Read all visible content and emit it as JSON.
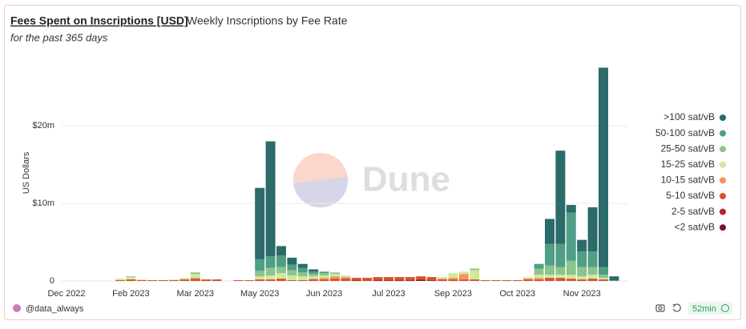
{
  "chart_data": {
    "type": "stacked_bar",
    "title": "Fees Spent on Inscriptions [USD]",
    "subtitle": "Weekly Inscriptions by Fee Rate",
    "note": "for the past 365 days",
    "ylabel": "US Dollars",
    "watermark": "Dune",
    "author": "@data_always",
    "refresh": "52min",
    "legend": "right",
    "grid": true,
    "categories": [
      "Dec 2022",
      null,
      null,
      null,
      null,
      null,
      "Feb 2023",
      null,
      null,
      null,
      null,
      null,
      "Mar 2023",
      null,
      null,
      null,
      null,
      null,
      "May 2023",
      null,
      null,
      null,
      null,
      null,
      "Jun 2023",
      null,
      null,
      null,
      null,
      null,
      "Jul 2023",
      null,
      null,
      null,
      null,
      null,
      "Sep 2023",
      null,
      null,
      null,
      null,
      null,
      "Oct 2023",
      null,
      null,
      null,
      null,
      null,
      "Nov 2023",
      null,
      null,
      null
    ],
    "ylim": [
      0,
      29000000
    ],
    "yticks": [
      0,
      {
        "value": 10000000,
        "label": "$10m"
      },
      {
        "value": 20000000,
        "label": "$20m"
      }
    ],
    "series": [
      {
        "name": ">100 sat/vB",
        "color": "#2b6b69",
        "values": [
          0,
          0,
          0,
          0,
          0,
          0,
          0,
          0,
          0,
          0,
          0,
          0,
          0,
          0,
          0,
          0,
          0,
          0,
          9200000.0,
          14800000.0,
          1200000.0,
          900000.0,
          500000.0,
          300000.0,
          0,
          0,
          0,
          0,
          0,
          0,
          0,
          0,
          0,
          0,
          0,
          0,
          0,
          0,
          0,
          0,
          0,
          0,
          0,
          0,
          0,
          3200000.0,
          12000000.0,
          1000000.0,
          1500000.0,
          5700000.0,
          25700000.0,
          500000.0
        ]
      },
      {
        "name": "50-100 sat/vB",
        "color": "#4f9e85",
        "values": [
          0,
          0,
          0,
          0,
          0,
          0,
          0,
          0,
          0,
          0,
          0,
          0,
          0,
          0,
          0,
          0,
          0,
          0,
          1500000.0,
          1500000.0,
          1500000.0,
          700000.0,
          600000.0,
          300000.0,
          200000.0,
          0,
          0,
          0,
          0,
          0,
          0,
          0,
          0,
          0,
          0,
          0,
          0,
          0,
          0,
          0,
          0,
          0,
          0,
          0,
          600000.0,
          2800000.0,
          3000000.0,
          6200000.0,
          2000000.0,
          2000000.0,
          1000000.0,
          100000.0
        ]
      },
      {
        "name": "25-50 sat/vB",
        "color": "#8cc48d",
        "values": [
          0,
          0,
          0,
          0,
          0,
          0,
          100000.0,
          0,
          0,
          0,
          0,
          0,
          200000.0,
          0,
          0,
          0,
          0,
          0,
          700000.0,
          1000000.0,
          800000.0,
          700000.0,
          500000.0,
          300000.0,
          300000.0,
          200000.0,
          0,
          0,
          0,
          0,
          0,
          0,
          0,
          0,
          0,
          0,
          0,
          0,
          200000.0,
          0,
          0,
          0,
          0,
          0,
          800000.0,
          1200000.0,
          1000000.0,
          1800000.0,
          1200000.0,
          1000000.0,
          400000.0,
          0
        ]
      },
      {
        "name": "15-25 sat/vB",
        "color": "#d2e99c",
        "values": [
          0,
          0,
          0,
          0,
          0,
          200000.0,
          300000.0,
          100000.0,
          0,
          0,
          100000.0,
          200000.0,
          500000.0,
          0,
          0,
          0,
          0,
          0,
          400000.0,
          500000.0,
          700000.0,
          600000.0,
          500000.0,
          300000.0,
          300000.0,
          300000.0,
          200000.0,
          0,
          0,
          0,
          0,
          0,
          0,
          0,
          0,
          200000.0,
          600000.0,
          300000.0,
          1200000.0,
          0,
          0,
          0,
          0,
          200000.0,
          400000.0,
          400000.0,
          400000.0,
          500000.0,
          400000.0,
          500000.0,
          200000.0,
          0
        ]
      },
      {
        "name": "10-15 sat/vB",
        "color": "#f2945f",
        "values": [
          0,
          0,
          0,
          0,
          0,
          0,
          0,
          0,
          0,
          0,
          0,
          0,
          100000.0,
          0,
          0,
          0,
          0,
          0,
          0,
          0,
          0,
          0,
          0,
          100000.0,
          200000.0,
          300000.0,
          200000.0,
          0,
          0,
          0,
          0,
          0,
          0,
          0,
          0,
          100000.0,
          200000.0,
          700000.0,
          0,
          0,
          0,
          0,
          0,
          100000.0,
          200000.0,
          0,
          0,
          0,
          0,
          0,
          0,
          0
        ]
      },
      {
        "name": "5-10 sat/vB",
        "color": "#d8512a",
        "values": [
          0,
          0,
          0,
          0,
          0,
          100000.0,
          200000.0,
          100000.0,
          100000.0,
          100000.0,
          100000.0,
          200000.0,
          300000.0,
          200000.0,
          200000.0,
          0,
          100000.0,
          100000.0,
          200000.0,
          200000.0,
          300000.0,
          100000.0,
          100000.0,
          200000.0,
          200000.0,
          300000.0,
          300000.0,
          300000.0,
          400000.0,
          400000.0,
          400000.0,
          400000.0,
          400000.0,
          400000.0,
          400000.0,
          200000.0,
          200000.0,
          200000.0,
          200000.0,
          100000.0,
          100000.0,
          100000.0,
          100000.0,
          200000.0,
          200000.0,
          400000.0,
          400000.0,
          300000.0,
          200000.0,
          300000.0,
          200000.0,
          0
        ]
      },
      {
        "name": "2-5 sat/vB",
        "color": "#b4202e",
        "values": [
          0,
          0,
          0,
          0,
          0,
          0,
          0,
          0,
          0,
          0,
          0,
          0,
          0,
          0,
          0,
          0,
          0,
          0,
          0,
          0,
          0,
          0,
          0,
          0,
          0,
          0,
          0,
          100000.0,
          0,
          100000.0,
          100000.0,
          100000.0,
          100000.0,
          100000.0,
          100000.0,
          0,
          0,
          0,
          0,
          0,
          0,
          0,
          0,
          0,
          0,
          0,
          0,
          0,
          0,
          0,
          0,
          0
        ]
      },
      {
        "name": "<2 sat/vB",
        "color": "#7a1131",
        "values": [
          0,
          0,
          0,
          0,
          0,
          0,
          0,
          0,
          0,
          0,
          0,
          0,
          0,
          0,
          0,
          0,
          0,
          0,
          0,
          0,
          0,
          0,
          0,
          0,
          0,
          0,
          0,
          0,
          0,
          0,
          0,
          0,
          0,
          100000.0,
          0,
          0,
          0,
          0,
          0,
          0,
          0,
          0,
          0,
          0,
          0,
          0,
          0,
          0,
          0,
          0,
          0,
          0
        ]
      }
    ]
  }
}
